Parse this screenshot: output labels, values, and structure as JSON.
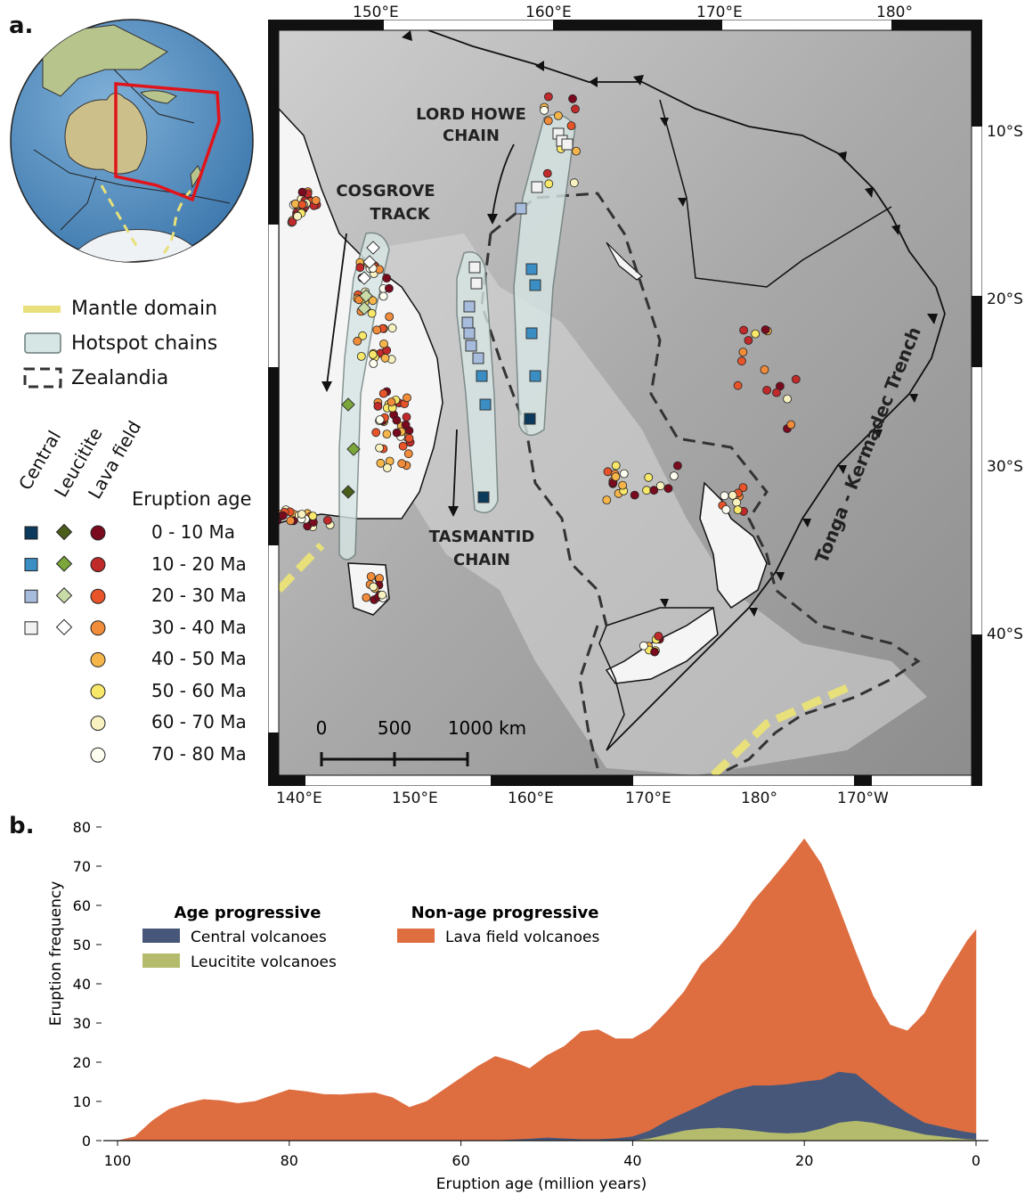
{
  "panel_a": {
    "label": "a.",
    "map": {
      "top_lon_ticks": [
        "150°E",
        "160°E",
        "170°E",
        "180°"
      ],
      "bottom_lon_ticks": [
        "140°E",
        "150°E",
        "160°E",
        "170°E",
        "180°",
        "170°W"
      ],
      "lat_ticks": [
        "10°S",
        "20°S",
        "30°S",
        "40°S"
      ],
      "annotations": {
        "lord_howe": [
          "LORD HOWE",
          "CHAIN"
        ],
        "cosgrove": [
          "COSGROVE",
          "TRACK"
        ],
        "tasmantid": [
          "TASMANTID",
          "CHAIN"
        ],
        "trench": "Tonga - Kermadec Trench"
      },
      "scale_bar": {
        "labels": [
          "0",
          "500",
          "1000 km"
        ]
      }
    },
    "legend": {
      "lines": [
        {
          "label": "Mantle domain",
          "color": "#e8e07a"
        },
        {
          "label": "Hotspot chains",
          "color": "#d6e6e4"
        },
        {
          "label": "Zealandia",
          "color": "#333333"
        }
      ],
      "column_headers": [
        "Central",
        "Leucitite",
        "Lava field"
      ],
      "age_title": "Eruption age",
      "ages": [
        {
          "label": "0 - 10 Ma",
          "central": "#0b3a5c",
          "leucitite": "#4a5e1a",
          "lava": "#7a0a1e"
        },
        {
          "label": "10 - 20 Ma",
          "central": "#3a8ec4",
          "leucitite": "#7aa63a",
          "lava": "#c02a2a"
        },
        {
          "label": "20 - 30 Ma",
          "central": "#a7bcdc",
          "leucitite": "#c9dca8",
          "lava": "#e8542a"
        },
        {
          "label": "30 - 40 Ma",
          "central": "#f2f2f2",
          "leucitite": "#ffffff",
          "lava": "#f08c3a"
        },
        {
          "label": "40 - 50 Ma",
          "lava": "#f5b54a"
        },
        {
          "label": "50 - 60 Ma",
          "lava": "#f8e86a"
        },
        {
          "label": "60 - 70 Ma",
          "lava": "#f8f2c0"
        },
        {
          "label": "70 - 80 Ma",
          "lava": "#fdfdf0"
        }
      ]
    }
  },
  "panel_b": {
    "label": "b."
  },
  "chart_data": {
    "type": "area",
    "xlabel": "Eruption age (million years)",
    "ylabel": "Eruption frequency",
    "xlim": [
      100,
      0
    ],
    "ylim": [
      0,
      80
    ],
    "x_ticks": [
      100,
      80,
      60,
      40,
      20,
      0
    ],
    "y_ticks": [
      0,
      10,
      20,
      30,
      40,
      50,
      60,
      70,
      80
    ],
    "legend": {
      "group_titles": [
        "Age progressive",
        "Non-age progressive"
      ],
      "placement": "top-left"
    },
    "x": [
      100,
      98,
      96,
      94,
      92,
      90,
      88,
      86,
      84,
      82,
      80,
      78,
      76,
      74,
      72,
      70,
      68,
      66,
      64,
      62,
      60,
      58,
      56,
      54,
      52,
      50,
      48,
      46,
      44,
      42,
      40,
      38,
      36,
      34,
      32,
      30,
      28,
      26,
      24,
      22,
      20,
      18,
      16,
      14,
      12,
      10,
      8,
      6,
      4,
      2,
      1,
      0
    ],
    "series": [
      {
        "name": "Leucitite volcanoes",
        "color": "#b5bb6c",
        "values": [
          0,
          0,
          0,
          0,
          0,
          0,
          0,
          0,
          0,
          0,
          0,
          0,
          0,
          0,
          0,
          0,
          0,
          0,
          0,
          0,
          0,
          0,
          0,
          0,
          0,
          0,
          0,
          0,
          0,
          0,
          0,
          0.5,
          1.5,
          2.5,
          3,
          3.2,
          3,
          2.5,
          2,
          1.8,
          2,
          3,
          4.5,
          5,
          4.5,
          3.5,
          2.5,
          1.5,
          1,
          0.5,
          0.3,
          0.2
        ]
      },
      {
        "name": "Central volcanoes",
        "color": "#46577a",
        "values": [
          0,
          0,
          0,
          0,
          0,
          0,
          0,
          0,
          0,
          0,
          0,
          0,
          0,
          0,
          0,
          0,
          0,
          0,
          0,
          0,
          0,
          0,
          0,
          0.2,
          0.4,
          0.7,
          0.5,
          0.3,
          0.3,
          0.5,
          1,
          2,
          3.5,
          4.5,
          6,
          8,
          10,
          11.5,
          12,
          12.5,
          13,
          12.5,
          13,
          12,
          9,
          6.5,
          4.5,
          3,
          2.5,
          2,
          1.8,
          1.6
        ]
      },
      {
        "name": "Lava field volcanoes",
        "color": "#de6d40",
        "values": [
          0,
          1,
          5,
          8,
          9.5,
          10.5,
          10.2,
          9.5,
          10,
          11.5,
          13,
          12.5,
          11.8,
          11.7,
          12,
          12.2,
          11,
          8.5,
          10,
          13,
          16,
          19,
          21.5,
          20,
          18,
          21,
          23.5,
          27.5,
          28,
          25.5,
          25,
          26,
          28,
          31,
          36,
          38,
          41.5,
          47,
          52,
          57,
          62,
          55,
          42,
          31,
          23.5,
          19.5,
          21,
          28,
          37,
          45,
          49,
          52
        ]
      }
    ]
  }
}
